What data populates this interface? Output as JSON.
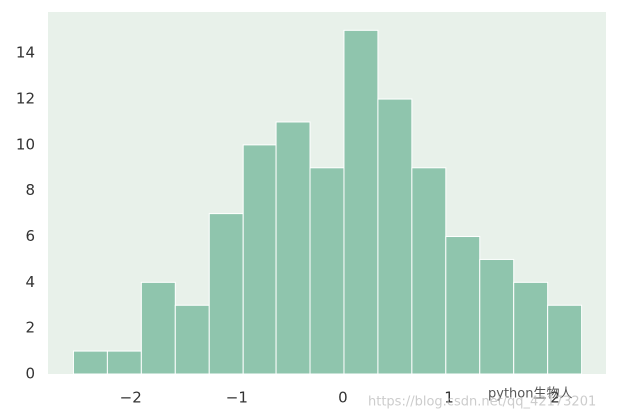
{
  "chart_data": {
    "type": "histogram",
    "bins": [
      -2.54,
      -2.22,
      -1.9,
      -1.58,
      -1.26,
      -0.94,
      -0.63,
      -0.31,
      0.01,
      0.33,
      0.65,
      0.97,
      1.29,
      1.61,
      1.93,
      2.25
    ],
    "values": [
      1,
      1,
      4,
      3,
      7,
      10,
      11,
      9,
      15,
      12,
      9,
      6,
      5,
      4,
      3
    ],
    "color": "#8fc5ad",
    "xlim": [
      -2.78,
      2.48
    ],
    "xticks": [
      {
        "value": -2,
        "label": "−2"
      },
      {
        "value": -1,
        "label": "−1"
      },
      0,
      1,
      2
    ],
    "ylim": [
      0,
      15.8
    ],
    "yticks": [
      0,
      2,
      4,
      6,
      8,
      10,
      12,
      14
    ],
    "grid": false,
    "watermark": [
      "python生物人",
      "https://blog.csdn.net/qq_42173201"
    ]
  }
}
